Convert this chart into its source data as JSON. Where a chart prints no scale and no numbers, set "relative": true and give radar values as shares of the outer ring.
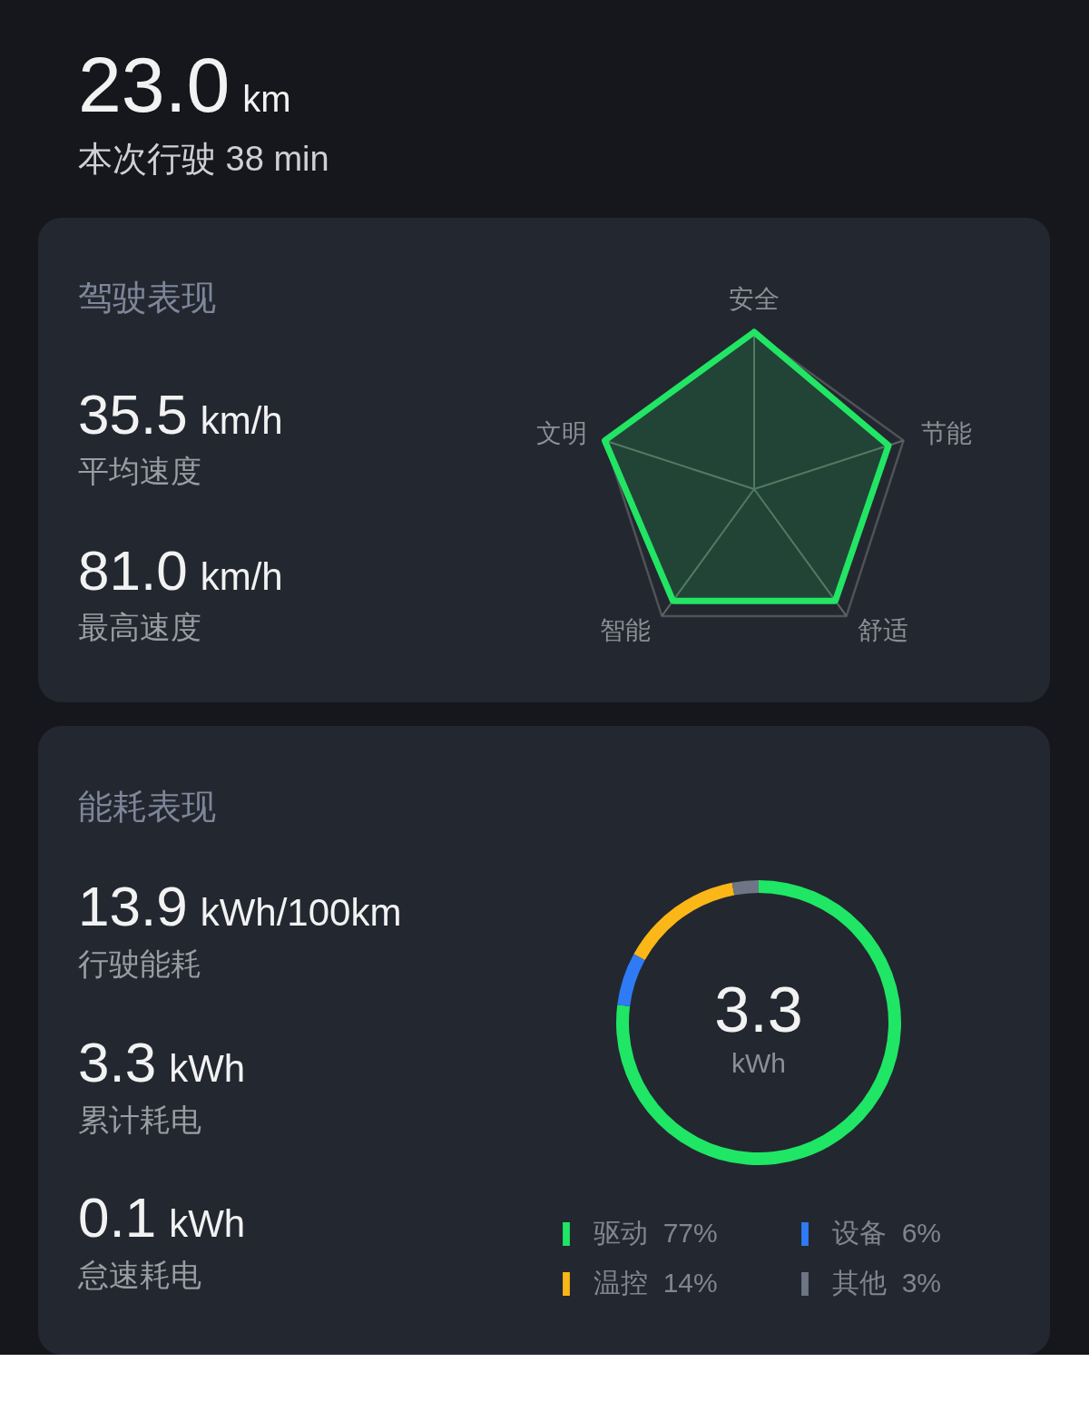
{
  "chart_data": [
    {
      "type": "other",
      "annotations": [
        "23.0",
        "km",
        "本次行驶 38 min"
      ]
    },
    {
      "type": "radar",
      "title": "驾驶表现",
      "categories": [
        "安全",
        "节能",
        "舒适",
        "智能",
        "文明"
      ],
      "series": [
        {
          "color": "#22e564",
          "values": [
            1,
            0.9,
            0.88,
            0.88,
            1
          ]
        }
      ],
      "relative": true,
      "grid": true,
      "annotations": [
        "35.5",
        "km/h",
        "平均速度",
        "81.0",
        "km/h",
        "最高速度"
      ]
    },
    {
      "type": "donut",
      "title": "能耗表现",
      "categories": [
        "驱动",
        "设备",
        "温控",
        "其他"
      ],
      "values": [
        77,
        6,
        14,
        3
      ],
      "colors": [
        "#1fe665",
        "#2f7bf5",
        "#fbb617",
        "#6e7686"
      ],
      "value_labels": [
        "77%",
        "6%",
        "14%",
        "3%"
      ],
      "legend": "bottom",
      "annotations": [
        "13.9",
        "kWh/100km",
        "行驶能耗",
        "3.3",
        "kWh",
        "累计耗电",
        "0.1",
        "kWh",
        "怠速耗电",
        "3.3",
        "kWh"
      ]
    }
  ]
}
